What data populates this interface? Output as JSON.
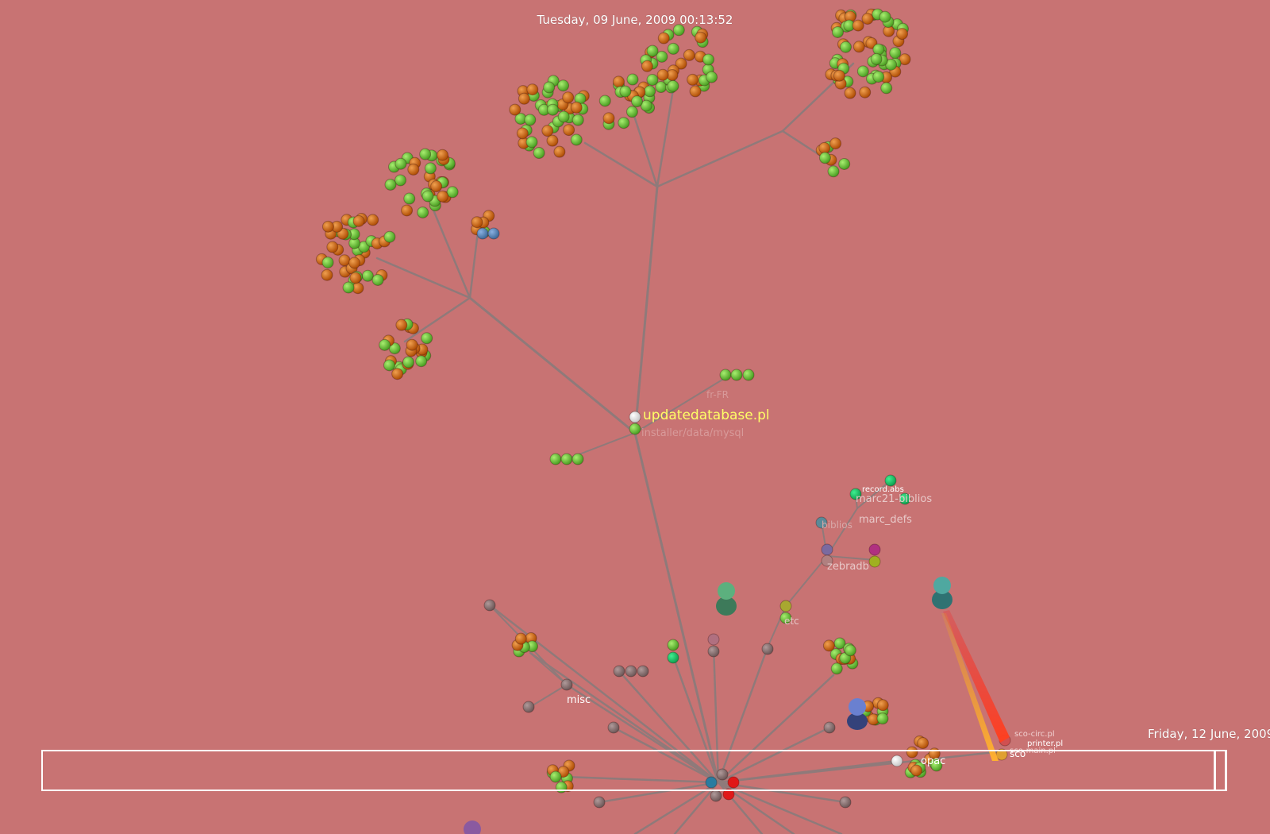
{
  "header": {
    "clock": "Tuesday, 09 June, 2009 00:13:52"
  },
  "timeline": {
    "end_date": "Friday, 12 June, 2009"
  },
  "labels": {
    "focus_file": "updatedatabase.pl",
    "installer_dir": "installer/data/mysql",
    "fr_dir": "fr-FR",
    "misc": "misc",
    "etc": "etc",
    "zebradb": "zebradb",
    "biblios": "biblios",
    "marc_defs": "marc_defs",
    "marc21_biblios": "marc21-biblios",
    "record_abs": "record.abs",
    "opac": "opac",
    "sco": "sco",
    "sco_circ": "sco-circ.pl",
    "printer": "printer.pl",
    "sco_main": "sco-main.pl"
  },
  "colors": {
    "background": "#c87373",
    "file_orange": "#d4620e",
    "file_green": "#6cc43a",
    "file_brown": "#8c7070",
    "file_blue": "#5a86b8",
    "highlight_text": "#ffff66",
    "branch": "#8f7a7a"
  }
}
